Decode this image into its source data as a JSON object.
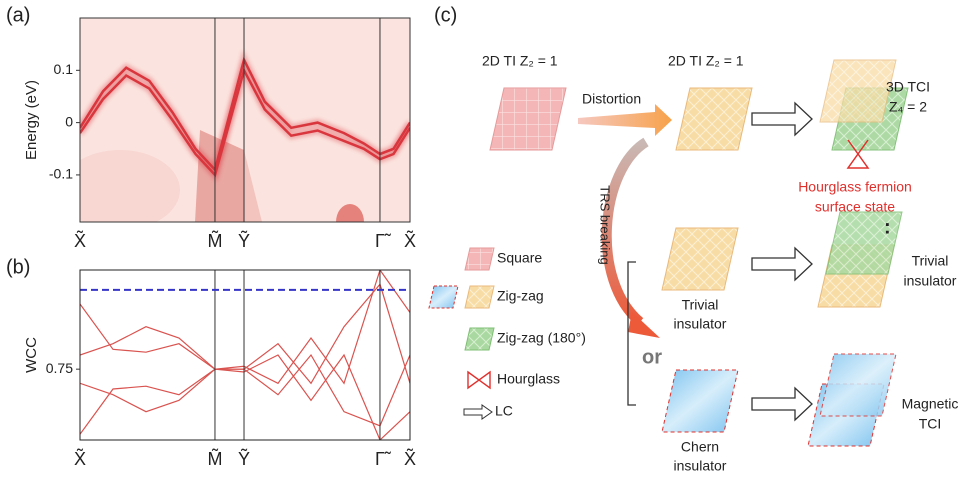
{
  "figure": {
    "panel_labels": [
      "(a)",
      "(b)",
      "(c)"
    ]
  },
  "chart_data": [
    {
      "type": "line",
      "ylabel": "Energy (eV)",
      "x": [
        0,
        0.07,
        0.14,
        0.21,
        0.28,
        0.35,
        0.409,
        0.497,
        0.56,
        0.64,
        0.72,
        0.8,
        0.86,
        0.909,
        0.95,
        1
      ],
      "xlim": [
        0,
        1
      ],
      "xticks": [
        {
          "value": 0,
          "label": "X̃"
        },
        {
          "value": 0.409,
          "label": "M̃"
        },
        {
          "value": 0.497,
          "label": "Ỹ"
        },
        {
          "value": 0.909,
          "label": "Γ̃"
        },
        {
          "value": 1,
          "label": "X̃"
        }
      ],
      "ylim": [
        -0.19,
        0.2
      ],
      "yticks": [
        0.1,
        0,
        -0.1
      ],
      "series": [
        {
          "color": "#d9363e",
          "values": [
            -0.01,
            0.06,
            0.105,
            0.08,
            0.02,
            -0.05,
            -0.09,
            0.12,
            0.04,
            -0.01,
            0.0,
            -0.02,
            -0.04,
            -0.06,
            -0.05,
            0.0
          ]
        },
        {
          "color": "#d9363e",
          "values": [
            -0.02,
            0.045,
            0.09,
            0.065,
            0.005,
            -0.06,
            -0.1,
            0.1,
            0.025,
            -0.025,
            -0.015,
            -0.035,
            -0.05,
            -0.07,
            -0.06,
            -0.01
          ]
        }
      ]
    },
    {
      "type": "line",
      "ylabel": "WCC",
      "x": [
        0,
        0.1,
        0.2,
        0.3,
        0.409,
        0.497,
        0.6,
        0.7,
        0.8,
        0.909,
        1
      ],
      "xlim": [
        0,
        1
      ],
      "xticks": [
        {
          "value": 0,
          "label": "X̃"
        },
        {
          "value": 0.409,
          "label": "M̃"
        },
        {
          "value": 0.497,
          "label": "Ỹ"
        },
        {
          "value": 0.909,
          "label": "Γ̃"
        },
        {
          "value": 1,
          "label": "X̃"
        }
      ],
      "ylim": [
        0.5,
        1.1
      ],
      "yticks": [
        0.75
      ],
      "reference_line": {
        "value": 1.03,
        "color": "#3535c8",
        "style": "dashed"
      },
      "series": [
        {
          "color": "#d9534f",
          "values": [
            0.52,
            0.68,
            0.69,
            0.66,
            0.75,
            0.76,
            0.7,
            0.86,
            0.7,
            1.1,
            0.95
          ]
        },
        {
          "color": "#d9534f",
          "values": [
            0.98,
            0.82,
            0.81,
            0.84,
            0.75,
            0.74,
            0.8,
            0.64,
            0.8,
            0.5,
            0.6
          ]
        },
        {
          "color": "#d9534f",
          "values": [
            0.7,
            0.66,
            0.6,
            0.64,
            0.75,
            0.75,
            0.84,
            0.7,
            0.9,
            1.05,
            0.7
          ]
        },
        {
          "color": "#d9534f",
          "values": [
            0.8,
            0.84,
            0.9,
            0.86,
            0.75,
            0.75,
            0.66,
            0.8,
            0.6,
            0.55,
            0.8
          ]
        }
      ]
    }
  ],
  "panel_c": {
    "top_left": "2D TI  Z₂ = 1",
    "top_mid": "2D TI  Z₂ = 1",
    "distortion": "Distortion",
    "top_right": [
      "3D TCI",
      "Z₄ = 2"
    ],
    "hourglass_note": [
      "Hourglass fermion",
      "surface state"
    ],
    "trs": "TRS breaking",
    "or": "or",
    "trivial_mid": [
      "Trivial",
      "insulator"
    ],
    "trivial_right": [
      "Trivial",
      "insulator"
    ],
    "chern": [
      "Chern",
      "insulator"
    ],
    "magnetic": [
      "Magnetic",
      "TCI"
    ],
    "legend": [
      "Square",
      "Zig-zag",
      "Zig-zag (180°)",
      "Hourglass",
      "LC"
    ]
  }
}
